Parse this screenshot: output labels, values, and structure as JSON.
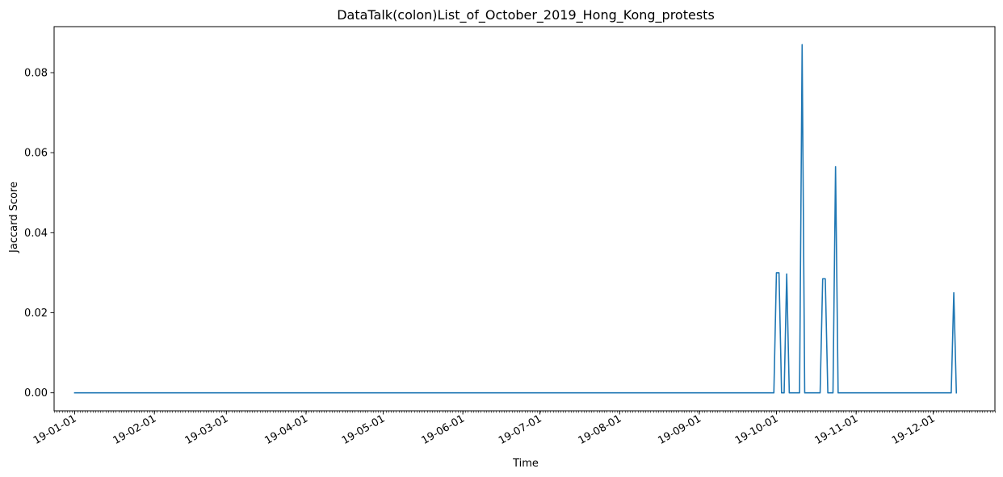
{
  "chart_data": {
    "type": "line",
    "title": "DataTalk(colon)List_of_October_2019_Hong_Kong_protests",
    "xlabel": "Time",
    "ylabel": "Jaccard Score",
    "xlim": [
      "2018-12-24",
      "2019-12-25"
    ],
    "ylim": [
      -0.0045,
      0.0915
    ],
    "x_tick_labels": [
      "19-01-01",
      "19-02-01",
      "19-03-01",
      "19-04-01",
      "19-05-01",
      "19-06-01",
      "19-07-01",
      "19-08-01",
      "19-09-01",
      "19-10-01",
      "19-11-01",
      "19-12-01"
    ],
    "y_ticks": [
      0.0,
      0.02,
      0.04,
      0.06,
      0.08
    ],
    "y_tick_labels": [
      "0.00",
      "0.02",
      "0.04",
      "0.06",
      "0.08"
    ],
    "grid": false,
    "series": [
      {
        "color": "#1f77b4",
        "points": [
          [
            "2019-01-01",
            0.0
          ],
          [
            "2019-09-30",
            0.0
          ],
          [
            "2019-10-01",
            0.03
          ],
          [
            "2019-10-02",
            0.03
          ],
          [
            "2019-10-03",
            0.0
          ],
          [
            "2019-10-04",
            0.0
          ],
          [
            "2019-10-05",
            0.0297
          ],
          [
            "2019-10-06",
            0.0
          ],
          [
            "2019-10-10",
            0.0
          ],
          [
            "2019-10-11",
            0.087
          ],
          [
            "2019-10-12",
            0.0
          ],
          [
            "2019-10-18",
            0.0
          ],
          [
            "2019-10-19",
            0.0285
          ],
          [
            "2019-10-20",
            0.0285
          ],
          [
            "2019-10-21",
            0.0
          ],
          [
            "2019-10-23",
            0.0
          ],
          [
            "2019-10-24",
            0.0565
          ],
          [
            "2019-10-25",
            0.0
          ],
          [
            "2019-12-08",
            0.0
          ],
          [
            "2019-12-09",
            0.025
          ],
          [
            "2019-12-10",
            0.0
          ]
        ]
      }
    ]
  }
}
